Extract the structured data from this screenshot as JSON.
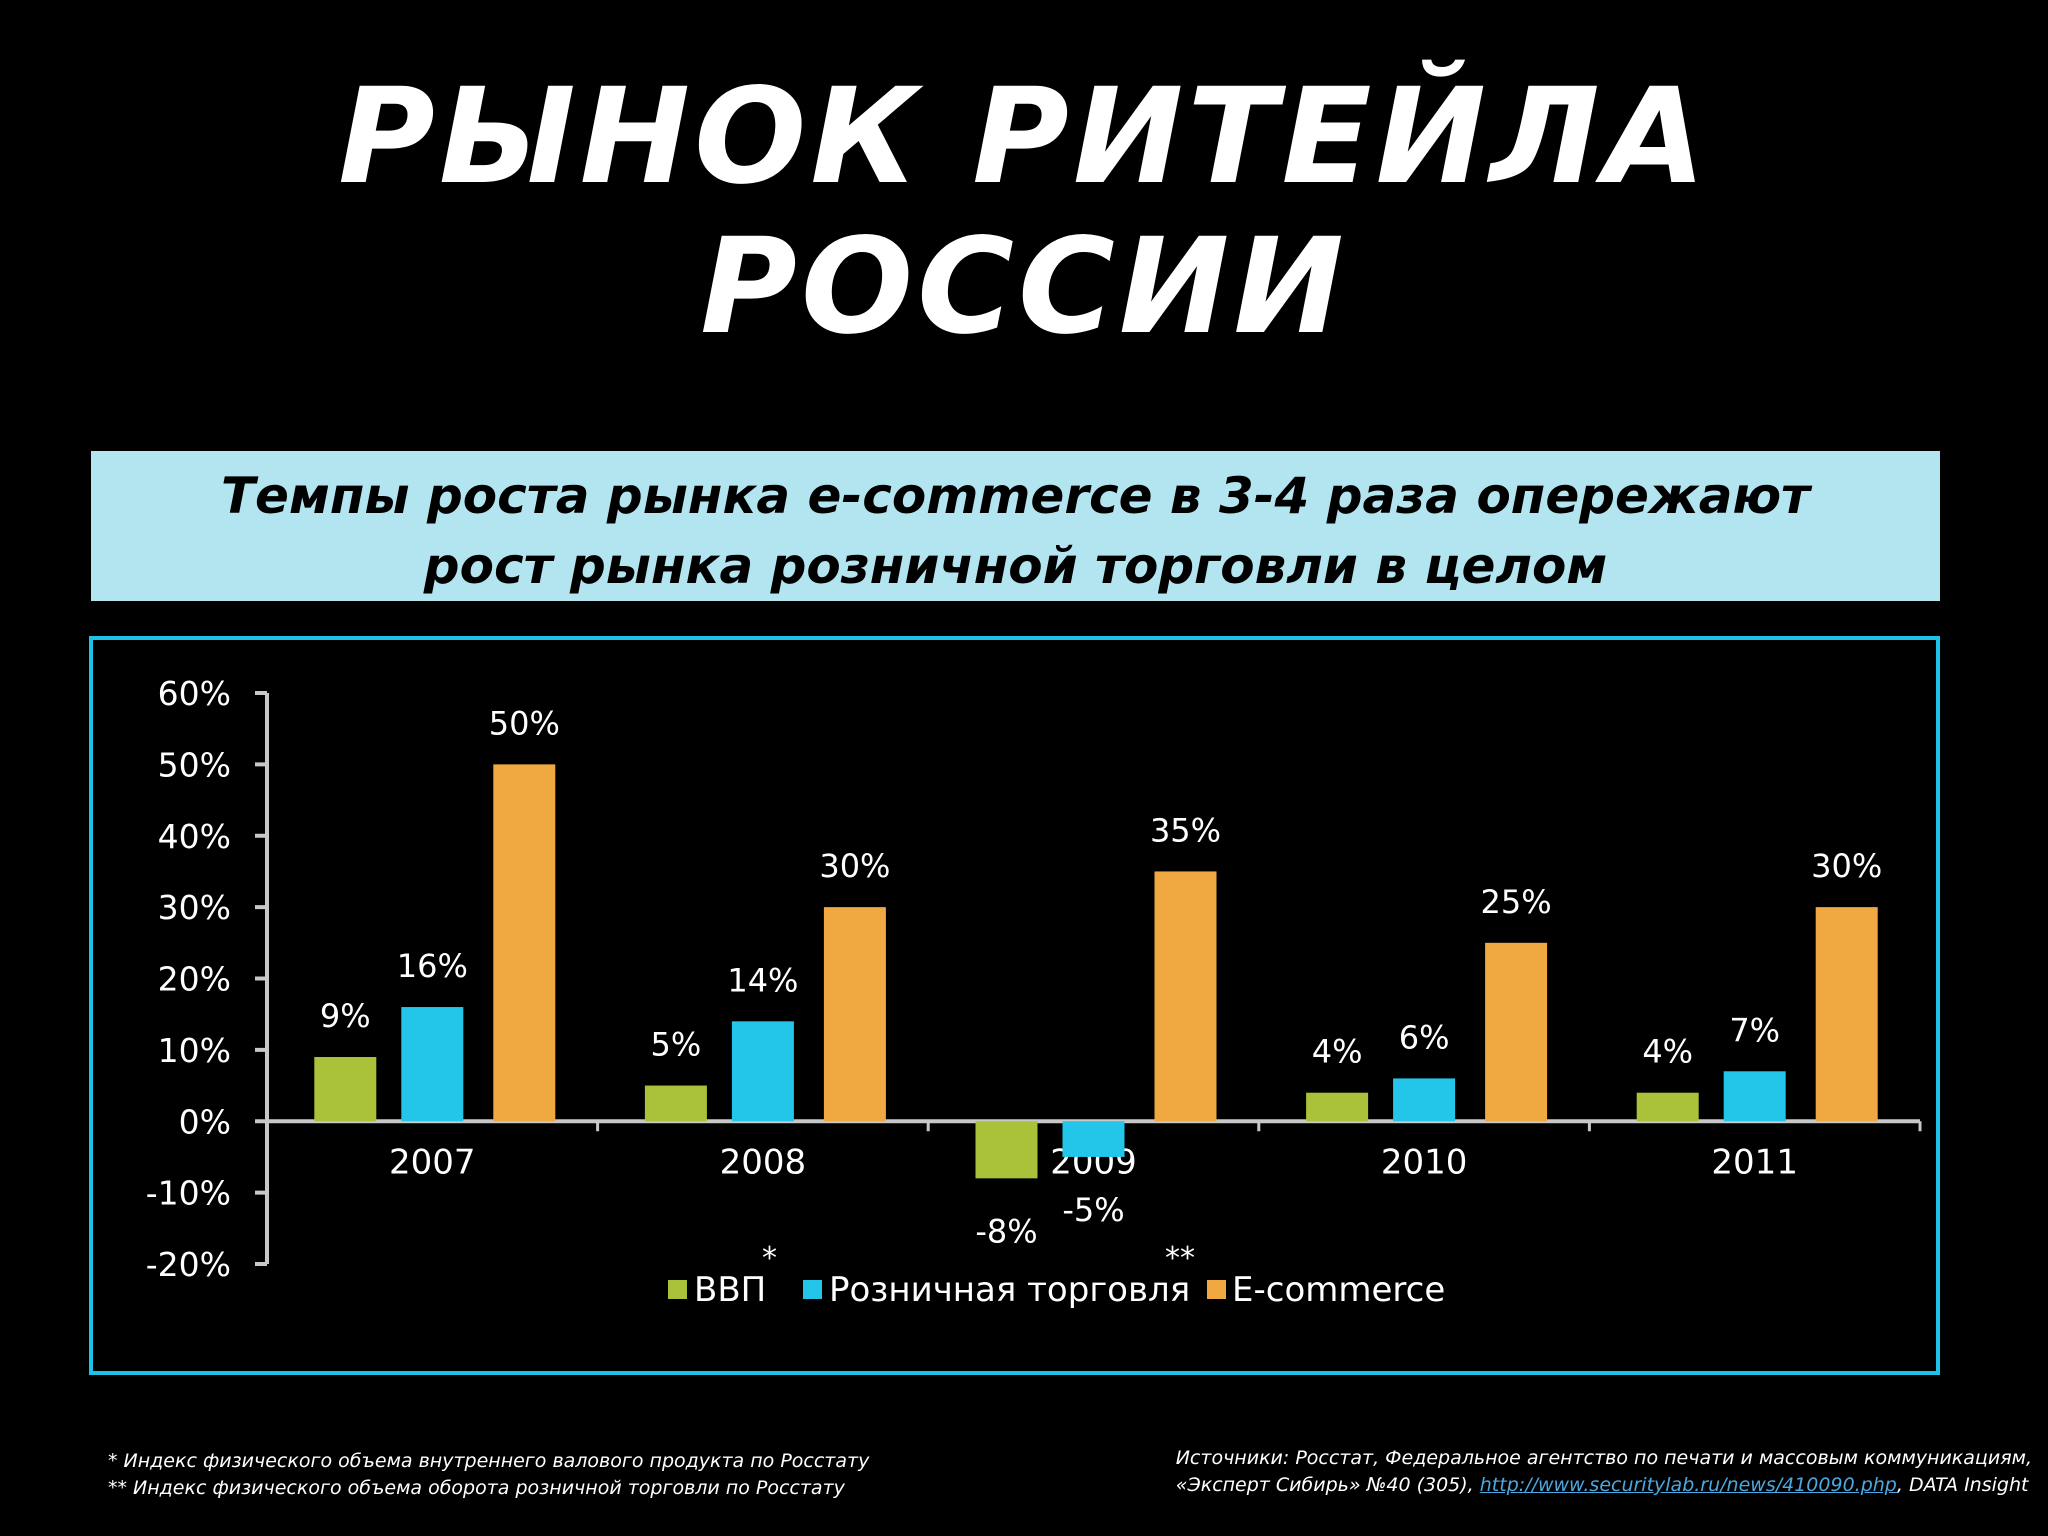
{
  "slide": {
    "title": "РЫНОК РИТЕЙЛА РОССИИ",
    "banner": {
      "line1": "Темпы роста рынка e-commerce в 3-4 раза опережают",
      "line2": "рост рынка розничной торговли в целом",
      "background_color": "#b2e5f0"
    },
    "chart_frame_color": "#1cc3e6"
  },
  "chart_data": {
    "type": "bar",
    "categories": [
      "2007",
      "2008",
      "2009",
      "2010",
      "2011"
    ],
    "series": [
      {
        "name": "ВВП",
        "marker": "*",
        "color": "#a9c23a",
        "values": [
          9,
          5,
          -8,
          4,
          4
        ],
        "labels": [
          "9%",
          "5%",
          "-8%",
          "4%",
          "4%"
        ]
      },
      {
        "name": "Розничная торговля",
        "marker": "**",
        "color": "#23c6e8",
        "values": [
          16,
          14,
          -5,
          6,
          7
        ],
        "labels": [
          "16%",
          "14%",
          "-5%",
          "6%",
          "7%"
        ]
      },
      {
        "name": "E-commerce",
        "marker": "",
        "color": "#f0a840",
        "values": [
          50,
          30,
          35,
          25,
          30
        ],
        "labels": [
          "50%",
          "30%",
          "35%",
          "25%",
          "30%"
        ]
      }
    ],
    "ylim": [
      -20,
      60
    ],
    "yticks": [
      60,
      50,
      40,
      30,
      20,
      10,
      0,
      -10,
      -20
    ],
    "ytick_labels": [
      "60%",
      "50%",
      "40%",
      "30%",
      "20%",
      "10%",
      "0%",
      "-10%",
      "-20%"
    ],
    "grid": false,
    "legend_position": "bottom"
  },
  "footnotes": {
    "note1": "* Индекс физического объема внутреннего валового продукта по Росстату",
    "note2": "** Индекс физического объема оборота розничной торговли по Росстату"
  },
  "sources": {
    "line1": "Источники: Росстат, Федеральное агентство по печати и массовым коммуникациям,",
    "line2_prefix": "«Эксперт Сибирь» №40 (305), ",
    "link": "http://www.securitylab.ru/news/410090.php",
    "line2_suffix": ", DATA Insight"
  }
}
